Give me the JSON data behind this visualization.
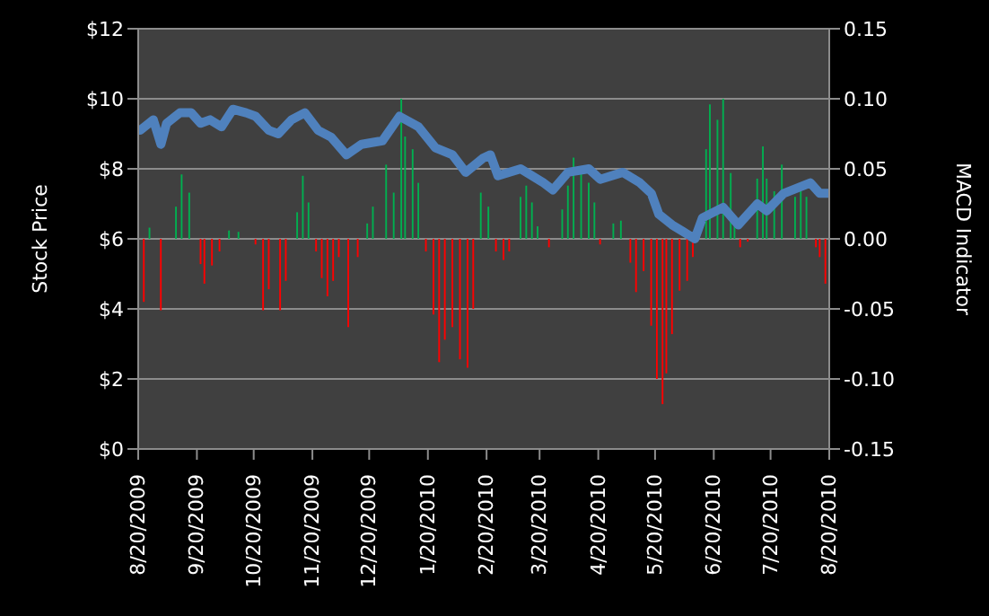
{
  "chart_data": {
    "type": "bar",
    "ylabel": "Stock Price",
    "y2label": "MACD Indicator",
    "xlim": [
      "2009-08-20",
      "2010-08-20"
    ],
    "xticks": [
      {
        "value": "2009-08-20",
        "label": "8/20/2009"
      },
      {
        "value": "2009-09-20",
        "label": "9/20/2009"
      },
      {
        "value": "2009-10-20",
        "label": "10/20/2009"
      },
      {
        "value": "2009-11-20",
        "label": "11/20/2009"
      },
      {
        "value": "2009-12-20",
        "label": "12/20/2009"
      },
      {
        "value": "2010-01-20",
        "label": "1/20/2010"
      },
      {
        "value": "2010-02-20",
        "label": "2/20/2010"
      },
      {
        "value": "2010-03-20",
        "label": "3/20/2010"
      },
      {
        "value": "2010-04-20",
        "label": "4/20/2010"
      },
      {
        "value": "2010-05-20",
        "label": "5/20/2010"
      },
      {
        "value": "2010-06-20",
        "label": "6/20/2010"
      },
      {
        "value": "2010-07-20",
        "label": "7/20/2010"
      },
      {
        "value": "2010-08-20",
        "label": "8/20/2010"
      }
    ],
    "ylim": [
      0,
      12
    ],
    "yticks": [
      {
        "value": 0,
        "label": "$0"
      },
      {
        "value": 2,
        "label": "$2"
      },
      {
        "value": 4,
        "label": "$4"
      },
      {
        "value": 6,
        "label": "$6"
      },
      {
        "value": 8,
        "label": "$8"
      },
      {
        "value": 10,
        "label": "$10"
      },
      {
        "value": 12,
        "label": "$12"
      }
    ],
    "y2lim": [
      -0.15,
      0.15
    ],
    "y2ticks": [
      {
        "value": -0.15,
        "label": "-0.15"
      },
      {
        "value": -0.1,
        "label": "-0.10"
      },
      {
        "value": -0.05,
        "label": "-0.05"
      },
      {
        "value": 0,
        "label": "0.00"
      },
      {
        "value": 0.05,
        "label": "0.05"
      },
      {
        "value": 0.1,
        "label": "0.10"
      },
      {
        "value": 0.15,
        "label": "0.15"
      }
    ],
    "grid": "y",
    "marker": "none",
    "series": [
      {
        "axis": "y2",
        "x": [
          "2009-08-23",
          "2009-08-26",
          "2009-09-01",
          "2009-09-09",
          "2009-09-12",
          "2009-09-16",
          "2009-09-22",
          "2009-09-24",
          "2009-09-28",
          "2009-10-02",
          "2009-10-07",
          "2009-10-12",
          "2009-10-21",
          "2009-10-25",
          "2009-10-28",
          "2009-11-03",
          "2009-11-06",
          "2009-11-12",
          "2009-11-15",
          "2009-11-18",
          "2009-11-22",
          "2009-11-25",
          "2009-11-28",
          "2009-12-01",
          "2009-12-04",
          "2009-12-09",
          "2009-12-14",
          "2009-12-19",
          "2009-12-22",
          "2009-12-29",
          "2010-01-02",
          "2010-01-06",
          "2010-01-08",
          "2010-01-12",
          "2010-01-15",
          "2010-01-19",
          "2010-01-23",
          "2010-01-26",
          "2010-01-29",
          "2010-02-02",
          "2010-02-06",
          "2010-02-10",
          "2010-02-13",
          "2010-02-17",
          "2010-02-21",
          "2010-02-25",
          "2010-03-01",
          "2010-03-04",
          "2010-03-10",
          "2010-03-13",
          "2010-03-16",
          "2010-03-19",
          "2010-03-25",
          "2010-04-01",
          "2010-04-04",
          "2010-04-07",
          "2010-04-11",
          "2010-04-15",
          "2010-04-18",
          "2010-04-21",
          "2010-04-28",
          "2010-05-02",
          "2010-05-07",
          "2010-05-10",
          "2010-05-14",
          "2010-05-18",
          "2010-05-21",
          "2010-05-24",
          "2010-05-26",
          "2010-05-29",
          "2010-06-02",
          "2010-06-06",
          "2010-06-09",
          "2010-06-12",
          "2010-06-16",
          "2010-06-18",
          "2010-06-22",
          "2010-06-25",
          "2010-06-29",
          "2010-07-01",
          "2010-07-04",
          "2010-07-08",
          "2010-07-13",
          "2010-07-16",
          "2010-07-18",
          "2010-07-22",
          "2010-07-26",
          "2010-07-29",
          "2010-08-02",
          "2010-08-05",
          "2010-08-08",
          "2010-08-13",
          "2010-08-15",
          "2010-08-18"
        ],
        "values": [
          -0.045,
          0.008,
          -0.051,
          0.023,
          0.046,
          0.033,
          -0.018,
          -0.032,
          -0.019,
          -0.009,
          0.006,
          0.005,
          -0.004,
          -0.051,
          -0.036,
          -0.051,
          -0.03,
          0.019,
          0.045,
          0.026,
          -0.009,
          -0.028,
          -0.041,
          -0.03,
          -0.013,
          -0.063,
          -0.013,
          0.011,
          0.023,
          0.053,
          0.033,
          0.1,
          0.073,
          0.064,
          0.04,
          -0.009,
          -0.054,
          -0.088,
          -0.072,
          -0.063,
          -0.086,
          -0.092,
          -0.05,
          0.033,
          0.023,
          -0.009,
          -0.015,
          -0.009,
          0.03,
          0.038,
          0.026,
          0.009,
          -0.006,
          0.021,
          0.038,
          0.058,
          0.047,
          0.04,
          0.026,
          -0.004,
          0.011,
          0.013,
          -0.017,
          -0.038,
          -0.023,
          -0.062,
          -0.1,
          -0.118,
          -0.096,
          -0.068,
          -0.037,
          -0.03,
          -0.013,
          null,
          0.064,
          0.096,
          0.085,
          0.1,
          0.047,
          0.009,
          -0.006,
          -0.002,
          0.043,
          0.066,
          0.043,
          0.034,
          0.053,
          null,
          0.03,
          0.034,
          0.03,
          -0.006,
          -0.013,
          -0.032
        ],
        "colors": [
          "#ff0000",
          "#00b050",
          "#ff0000",
          "#00b050",
          "#00b050",
          "#00b050",
          "#ff0000",
          "#ff0000",
          "#ff0000",
          "#ff0000",
          "#00b050",
          "#00b050",
          "#ff0000",
          "#ff0000",
          "#ff0000",
          "#ff0000",
          "#ff0000",
          "#00b050",
          "#00b050",
          "#00b050",
          "#ff0000",
          "#ff0000",
          "#ff0000",
          "#ff0000",
          "#ff0000",
          "#ff0000",
          "#ff0000",
          "#00b050",
          "#00b050",
          "#00b050",
          "#00b050",
          "#00b050",
          "#00b050",
          "#00b050",
          "#00b050",
          "#ff0000",
          "#ff0000",
          "#ff0000",
          "#ff0000",
          "#ff0000",
          "#ff0000",
          "#ff0000",
          "#ff0000",
          "#00b050",
          "#00b050",
          "#ff0000",
          "#ff0000",
          "#ff0000",
          "#00b050",
          "#00b050",
          "#00b050",
          "#00b050",
          "#ff0000",
          "#00b050",
          "#00b050",
          "#00b050",
          "#00b050",
          "#00b050",
          "#00b050",
          "#ff0000",
          "#00b050",
          "#00b050",
          "#ff0000",
          "#ff0000",
          "#ff0000",
          "#ff0000",
          "#ff0000",
          "#ff0000",
          "#ff0000",
          "#ff0000",
          "#ff0000",
          "#ff0000",
          "#ff0000",
          "#00b050",
          "#00b050",
          "#00b050",
          "#00b050",
          "#00b050",
          "#00b050",
          "#00b050",
          "#ff0000",
          "#ff0000",
          "#00b050",
          "#00b050",
          "#00b050",
          "#00b050",
          "#00b050",
          "#00b050",
          "#00b050",
          "#00b050",
          "#00b050",
          "#ff0000",
          "#ff0000",
          "#ff0000"
        ]
      },
      {
        "type": "line",
        "color": "#4f81bd",
        "x": [
          "2009-08-21",
          "2009-08-28",
          "2009-09-01",
          "2009-09-04",
          "2009-09-11",
          "2009-09-17",
          "2009-09-22",
          "2009-09-27",
          "2009-10-03",
          "2009-10-09",
          "2009-10-16",
          "2009-10-21",
          "2009-10-28",
          "2009-11-02",
          "2009-11-09",
          "2009-11-16",
          "2009-11-23",
          "2009-11-30",
          "2009-12-08",
          "2009-12-16",
          "2009-12-27",
          "2010-01-05",
          "2010-01-15",
          "2010-01-24",
          "2010-02-02",
          "2010-02-09",
          "2010-02-18",
          "2010-02-22",
          "2010-02-26",
          "2010-03-10",
          "2010-03-22",
          "2010-03-27",
          "2010-04-04",
          "2010-04-15",
          "2010-04-21",
          "2010-05-03",
          "2010-05-12",
          "2010-05-18",
          "2010-05-22",
          "2010-05-29",
          "2010-06-10",
          "2010-06-14",
          "2010-06-25",
          "2010-07-03",
          "2010-07-13",
          "2010-07-18",
          "2010-07-27",
          "2010-08-10",
          "2010-08-15",
          "2010-08-20"
        ],
        "values": [
          9.1,
          9.4,
          8.7,
          9.3,
          9.6,
          9.6,
          9.3,
          9.4,
          9.2,
          9.7,
          9.6,
          9.5,
          9.1,
          9.0,
          9.4,
          9.6,
          9.1,
          8.9,
          8.4,
          8.7,
          8.8,
          9.5,
          9.2,
          8.6,
          8.4,
          7.9,
          8.3,
          8.4,
          7.8,
          8.0,
          7.6,
          7.4,
          7.9,
          8.0,
          7.7,
          7.9,
          7.6,
          7.3,
          6.7,
          6.4,
          6.0,
          6.6,
          6.9,
          6.4,
          7.0,
          6.8,
          7.3,
          7.6,
          7.3,
          7.3
        ]
      }
    ]
  }
}
